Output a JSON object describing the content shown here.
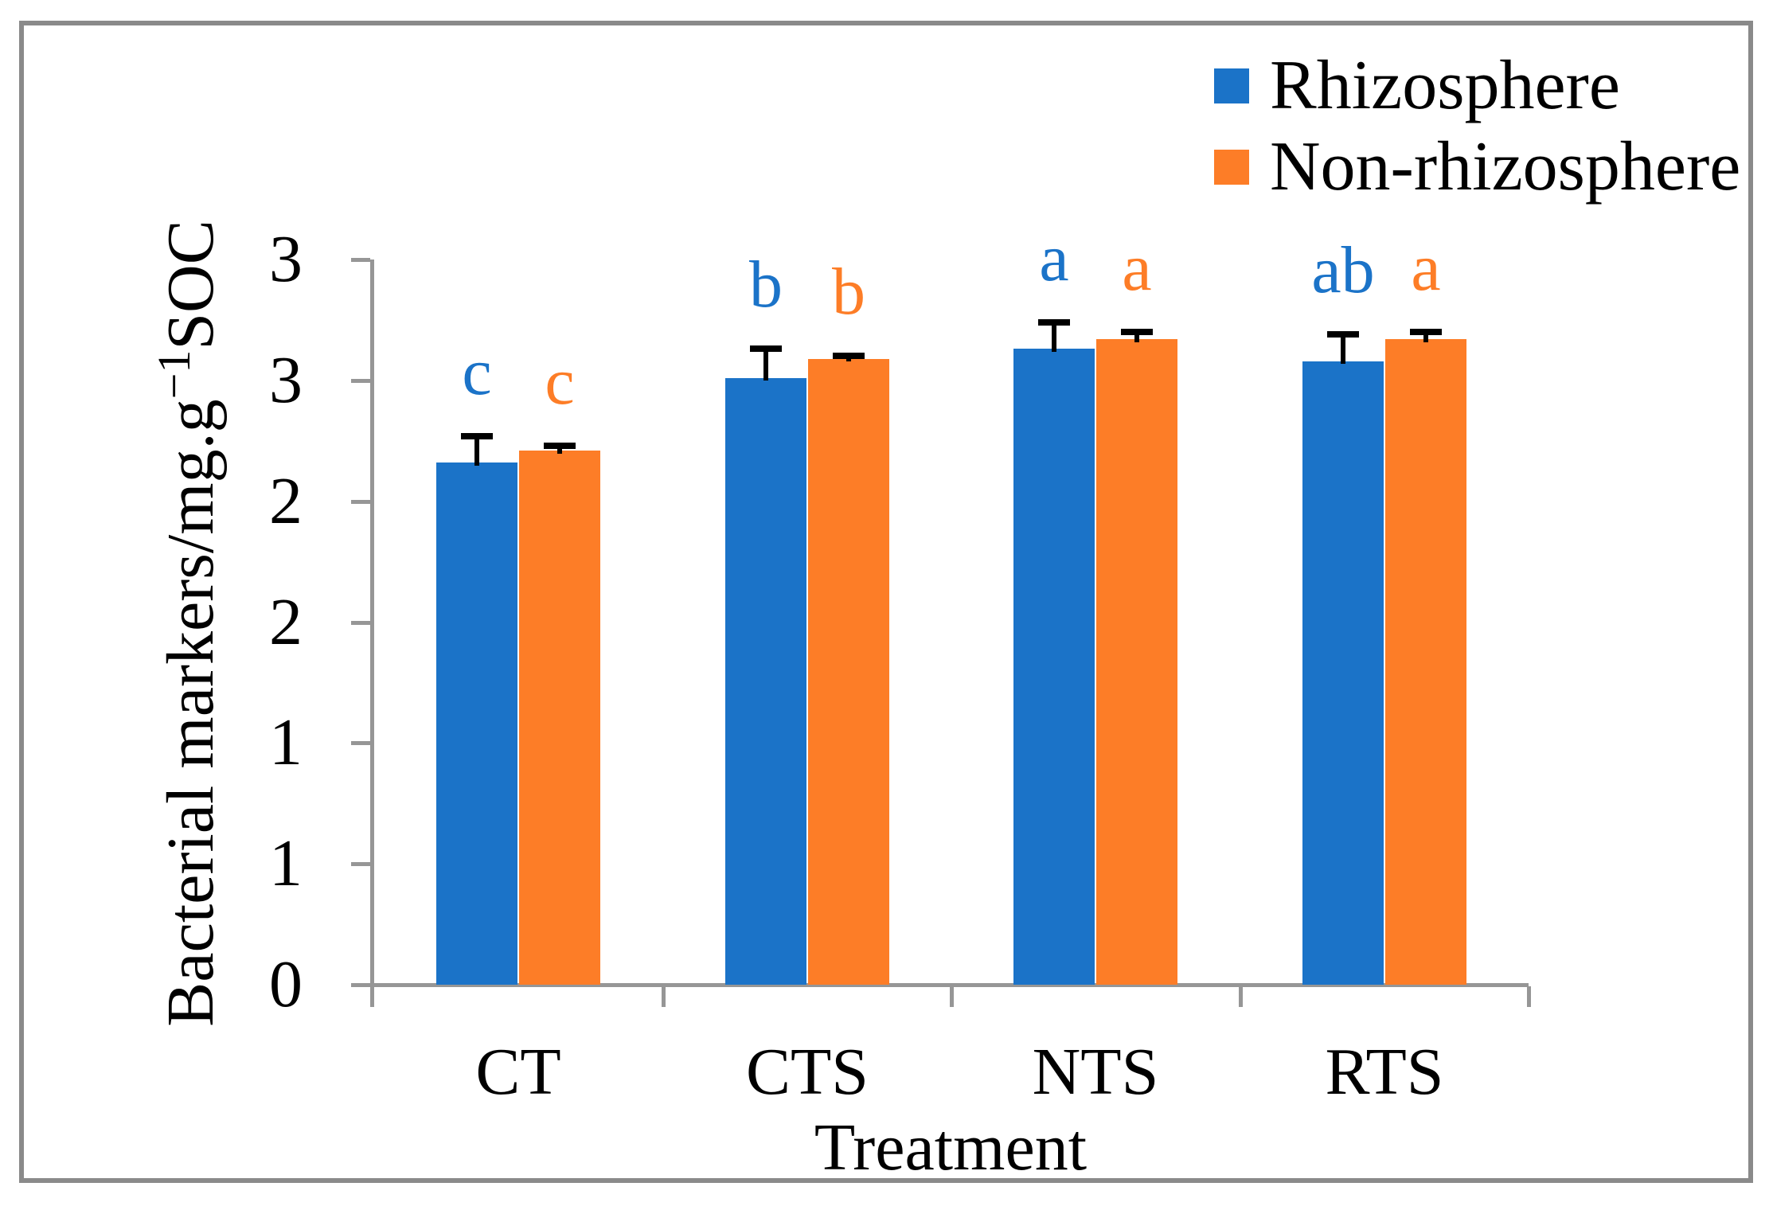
{
  "figure": {
    "frame_color": "#8a8a8a",
    "axis_color": "#969696",
    "error_bar_color": "#000000",
    "text_color": "#000000"
  },
  "legend": {
    "items": [
      {
        "label": "Rhizosphere"
      },
      {
        "label": "Non-rhizosphere"
      }
    ]
  },
  "chart_data": {
    "type": "bar",
    "title": "",
    "xlabel": "Treatment",
    "ylabel": {
      "prefix": "Bacterial markers/mg.g",
      "superscript": "−1",
      "suffix": "SOC",
      "full_text": "Bacterial markers/mg.g−1SOC"
    },
    "categories": [
      "CT",
      "CTS",
      "NTS",
      "RTS"
    ],
    "series": [
      {
        "name": "Rhizosphere",
        "color": "#1b73c8",
        "values": [
          2.16,
          2.51,
          2.63,
          2.58
        ],
        "errors": [
          0.11,
          0.12,
          0.11,
          0.11
        ],
        "letters": [
          "c",
          "b",
          "a",
          "ab"
        ]
      },
      {
        "name": "Non-rhizosphere",
        "color": "#fd7d27",
        "values": [
          2.21,
          2.59,
          2.67,
          2.67
        ],
        "errors": [
          0.02,
          0.01,
          0.03,
          0.03
        ],
        "letters": [
          "c",
          "b",
          "a",
          "a"
        ]
      }
    ],
    "y_axis": {
      "min": 0,
      "max": 3,
      "step": 0.5,
      "tick_labels": [
        "0",
        "1",
        "1",
        "2",
        "2",
        "3",
        "3"
      ]
    },
    "legend_position": "top-right",
    "grid": false,
    "error_bars": "plus-direction"
  }
}
